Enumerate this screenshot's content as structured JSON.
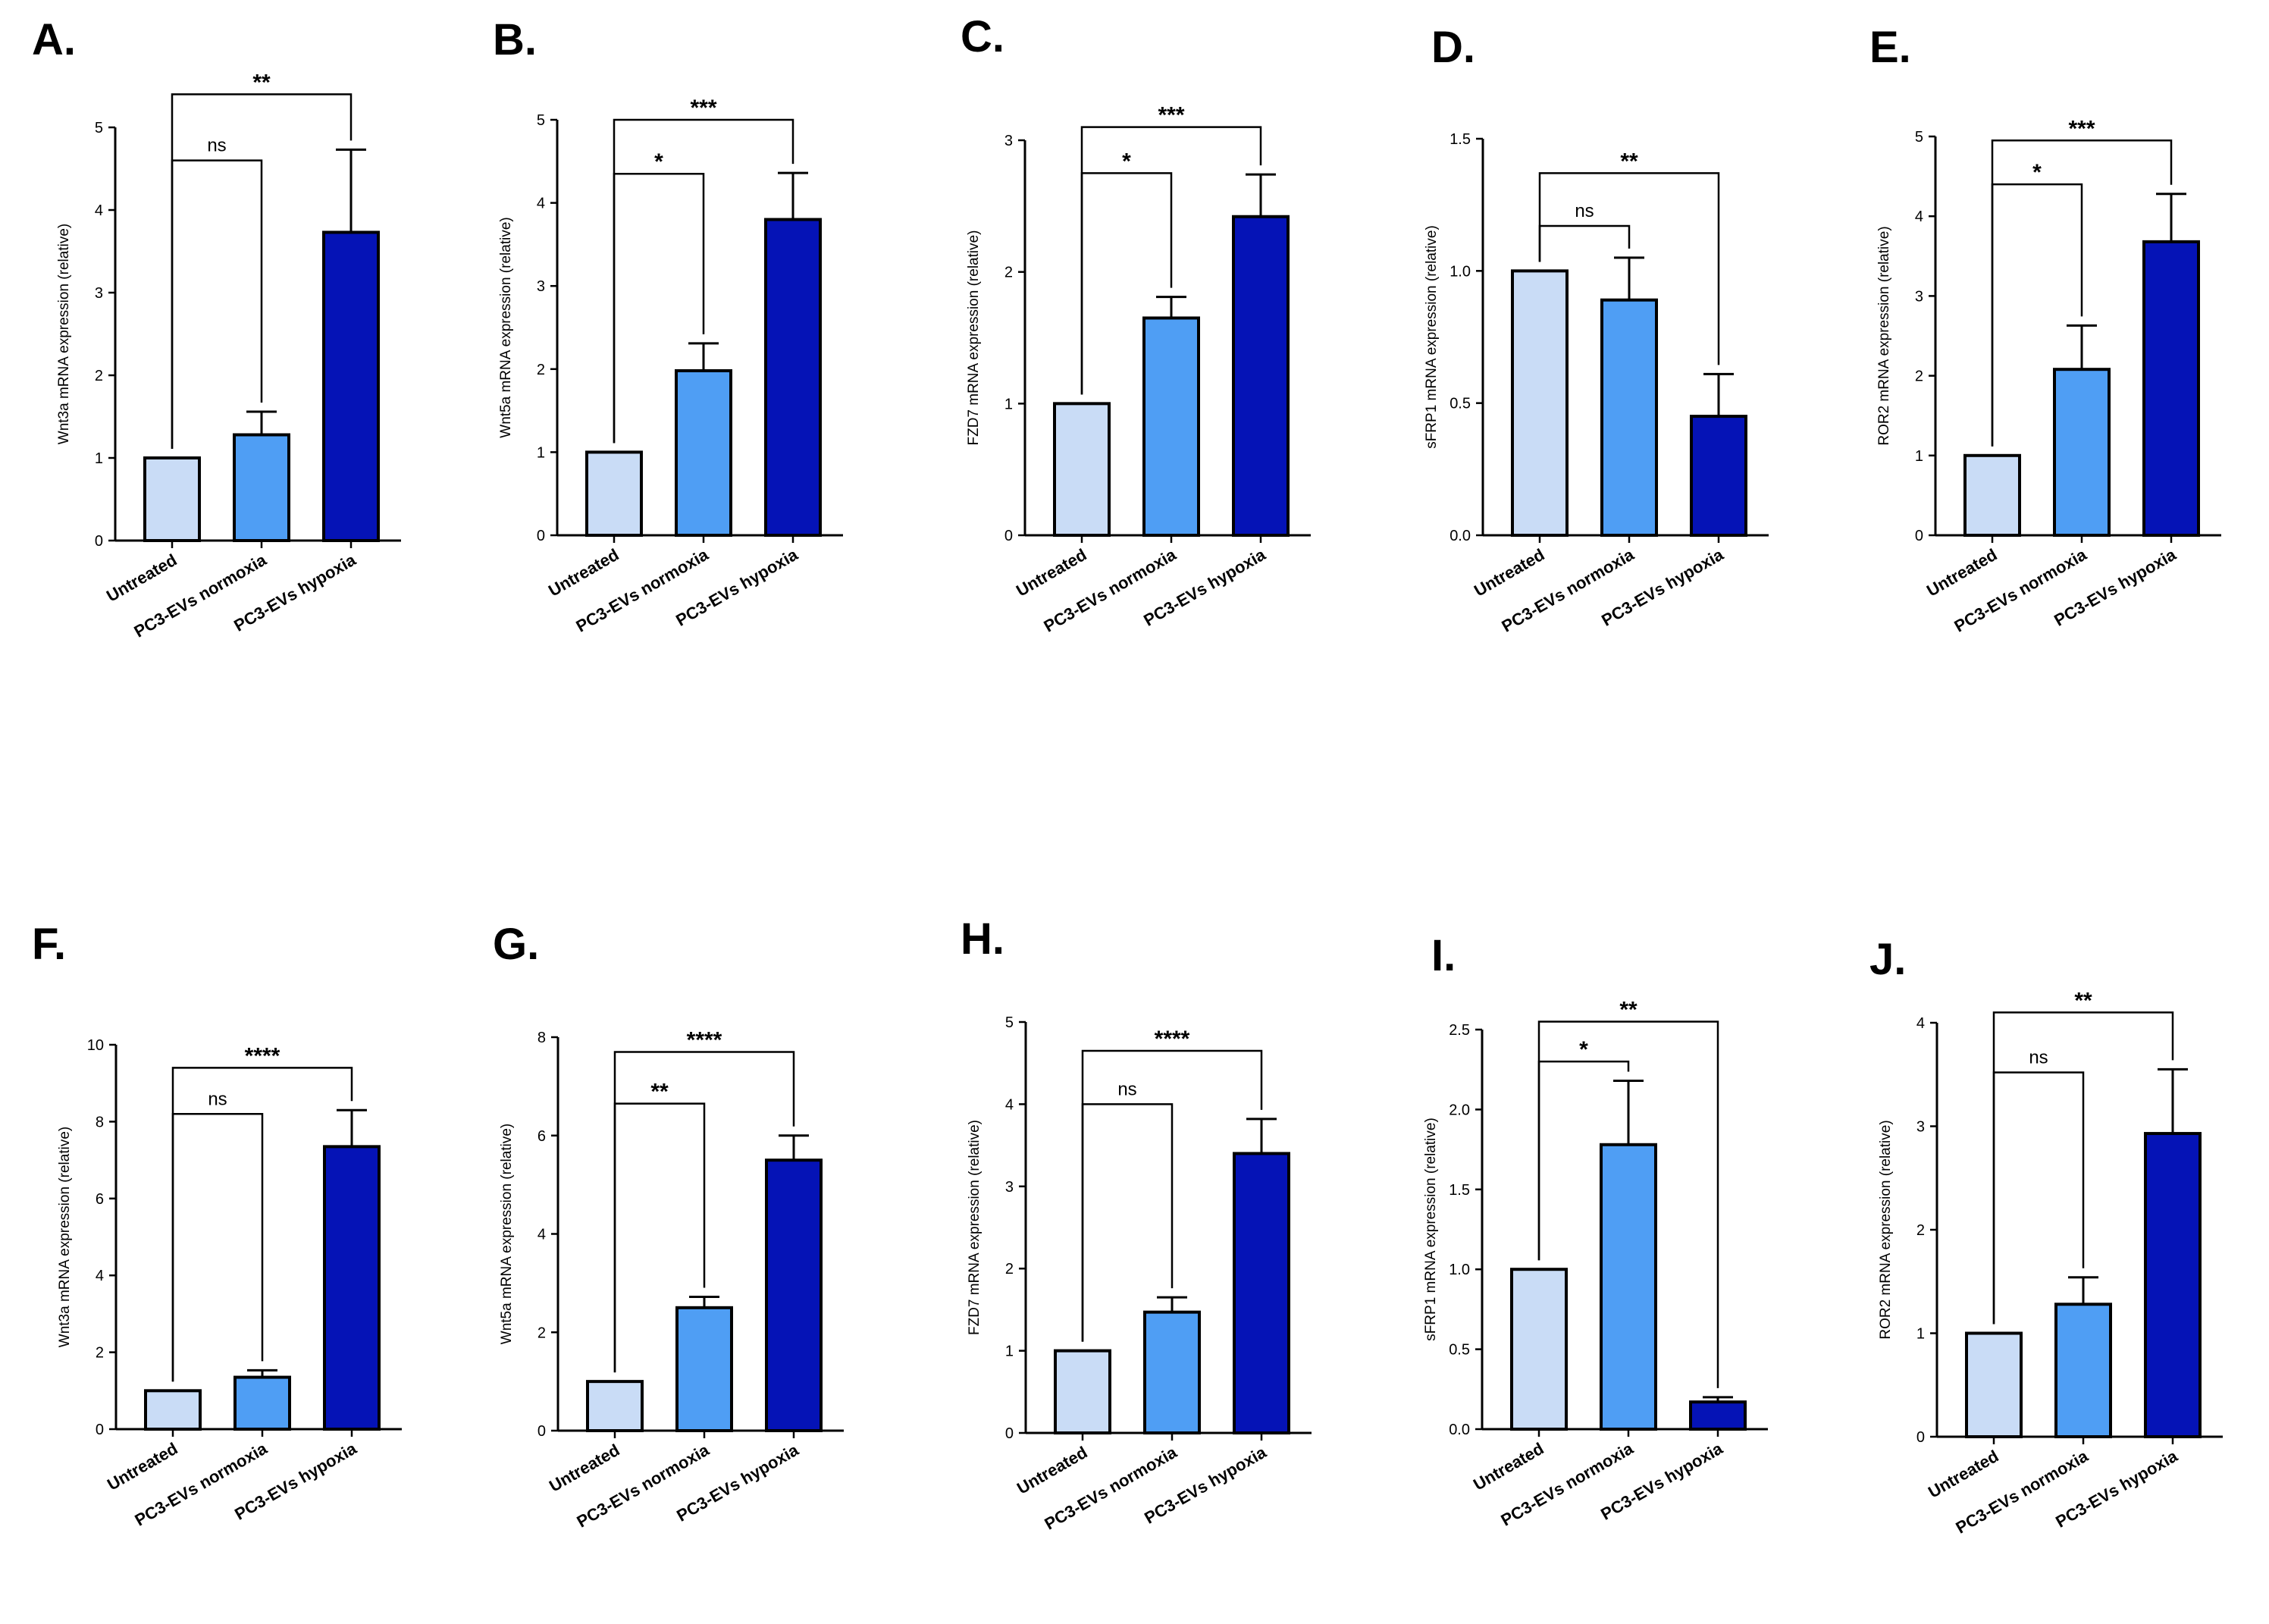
{
  "categories": [
    "Untreated",
    "PC3-EVs normoxia",
    "PC3-EVs hypoxia"
  ],
  "colors": {
    "bar_fills": [
      "#c9dcf6",
      "#4f9ef4",
      "#0513b6"
    ],
    "axis": "#000000"
  },
  "chart_data": [
    {
      "type": "bar",
      "panel": "A.",
      "ylabel": "Wnt3a mRNA expression (relative)",
      "ylim": [
        0,
        5
      ],
      "yticks": [
        "0",
        "1",
        "2",
        "3",
        "4",
        "5"
      ],
      "categories": [
        "Untreated",
        "PC3-EVs normoxia",
        "PC3-EVs hypoxia"
      ],
      "values": [
        1.0,
        1.28,
        3.73
      ],
      "errors": [
        0,
        0.28,
        1.0
      ],
      "significance": [
        {
          "from": 0,
          "to": 1,
          "label": "ns",
          "level": 4.6
        },
        {
          "from": 0,
          "to": 2,
          "label": "**",
          "level": 5.4
        }
      ]
    },
    {
      "type": "bar",
      "panel": "B.",
      "ylabel": "Wnt5a mRNA expression (relative)",
      "ylim": [
        0,
        5
      ],
      "yticks": [
        "0",
        "1",
        "2",
        "3",
        "4",
        "5"
      ],
      "categories": [
        "Untreated",
        "PC3-EVs normoxia",
        "PC3-EVs hypoxia"
      ],
      "values": [
        1.0,
        1.98,
        3.8
      ],
      "errors": [
        0,
        0.33,
        0.56
      ],
      "significance": [
        {
          "from": 0,
          "to": 1,
          "label": "*",
          "level": 4.35
        },
        {
          "from": 0,
          "to": 2,
          "label": "***",
          "level": 5.0
        }
      ]
    },
    {
      "type": "bar",
      "panel": "C.",
      "ylabel": "FZD7 mRNA expression (relative)",
      "ylim": [
        0,
        3
      ],
      "yticks": [
        "0",
        "1",
        "2",
        "3"
      ],
      "categories": [
        "Untreated",
        "PC3-EVs normoxia",
        "PC3-EVs hypoxia"
      ],
      "values": [
        1.0,
        1.65,
        2.42
      ],
      "errors": [
        0,
        0.16,
        0.32
      ],
      "significance": [
        {
          "from": 0,
          "to": 1,
          "label": "*",
          "level": 2.75
        },
        {
          "from": 0,
          "to": 2,
          "label": "***",
          "level": 3.1
        }
      ]
    },
    {
      "type": "bar",
      "panel": "D.",
      "ylabel": "sFRP1 mRNA expression (relative)",
      "ylim": [
        0,
        1.5
      ],
      "yticks": [
        "0.0",
        "0.5",
        "1.0",
        "1.5"
      ],
      "categories": [
        "Untreated",
        "PC3-EVs normoxia",
        "PC3-EVs hypoxia"
      ],
      "values": [
        1.0,
        0.89,
        0.45
      ],
      "errors": [
        0,
        0.16,
        0.16
      ],
      "significance": [
        {
          "from": 0,
          "to": 1,
          "label": "ns",
          "level": 1.17
        },
        {
          "from": 0,
          "to": 2,
          "label": "**",
          "level": 1.37
        }
      ]
    },
    {
      "type": "bar",
      "panel": "E.",
      "ylabel": "ROR2 mRNA expression (relative)",
      "ylim": [
        0,
        5
      ],
      "yticks": [
        "0",
        "1",
        "2",
        "3",
        "4",
        "5"
      ],
      "categories": [
        "Untreated",
        "PC3-EVs normoxia",
        "PC3-EVs hypoxia"
      ],
      "values": [
        1.0,
        2.08,
        3.68
      ],
      "errors": [
        0,
        0.55,
        0.6
      ],
      "significance": [
        {
          "from": 0,
          "to": 1,
          "label": "*",
          "level": 4.4
        },
        {
          "from": 0,
          "to": 2,
          "label": "***",
          "level": 4.95
        }
      ]
    },
    {
      "type": "bar",
      "panel": "F.",
      "ylabel": "Wnt3a mRNA expression (relative)",
      "ylim": [
        0,
        10
      ],
      "yticks": [
        "0",
        "2",
        "4",
        "6",
        "8",
        "10"
      ],
      "categories": [
        "Untreated",
        "PC3-EVs normoxia",
        "PC3-EVs hypoxia"
      ],
      "values": [
        1.0,
        1.35,
        7.35
      ],
      "errors": [
        0,
        0.18,
        0.95
      ],
      "significance": [
        {
          "from": 0,
          "to": 1,
          "label": "ns",
          "level": 8.2
        },
        {
          "from": 0,
          "to": 2,
          "label": "****",
          "level": 9.4
        }
      ]
    },
    {
      "type": "bar",
      "panel": "G.",
      "ylabel": "Wnt5a mRNA expression (relative)",
      "ylim": [
        0,
        8
      ],
      "yticks": [
        "0",
        "2",
        "4",
        "6",
        "8"
      ],
      "categories": [
        "Untreated",
        "PC3-EVs normoxia",
        "PC3-EVs hypoxia"
      ],
      "values": [
        1.0,
        2.5,
        5.5
      ],
      "errors": [
        0,
        0.22,
        0.5
      ],
      "significance": [
        {
          "from": 0,
          "to": 1,
          "label": "**",
          "level": 6.65
        },
        {
          "from": 0,
          "to": 2,
          "label": "****",
          "level": 7.7
        }
      ]
    },
    {
      "type": "bar",
      "panel": "H.",
      "ylabel": "FZD7 mRNA expression (relative)",
      "ylim": [
        0,
        5
      ],
      "yticks": [
        "0",
        "1",
        "2",
        "3",
        "4",
        "5"
      ],
      "categories": [
        "Untreated",
        "PC3-EVs normoxia",
        "PC3-EVs hypoxia"
      ],
      "values": [
        1.0,
        1.47,
        3.4
      ],
      "errors": [
        0,
        0.18,
        0.42
      ],
      "significance": [
        {
          "from": 0,
          "to": 1,
          "label": "ns",
          "level": 4.0
        },
        {
          "from": 0,
          "to": 2,
          "label": "****",
          "level": 4.65
        }
      ]
    },
    {
      "type": "bar",
      "panel": "I.",
      "ylabel": "sFRP1 mRNA expression (relative)",
      "ylim": [
        0,
        2.5
      ],
      "yticks": [
        "0.0",
        "0.5",
        "1.0",
        "1.5",
        "2.0",
        "2.5"
      ],
      "categories": [
        "Untreated",
        "PC3-EVs normoxia",
        "PC3-EVs hypoxia"
      ],
      "values": [
        1.0,
        1.78,
        0.17
      ],
      "errors": [
        0,
        0.4,
        0.03
      ],
      "significance": [
        {
          "from": 0,
          "to": 1,
          "label": "*",
          "level": 2.3
        },
        {
          "from": 0,
          "to": 2,
          "label": "**",
          "level": 2.55
        }
      ]
    },
    {
      "type": "bar",
      "panel": "J.",
      "ylabel": "ROR2 mRNA expression (relative)",
      "ylim": [
        0,
        4
      ],
      "yticks": [
        "0",
        "1",
        "2",
        "3",
        "4"
      ],
      "categories": [
        "Untreated",
        "PC3-EVs normoxia",
        "PC3-EVs hypoxia"
      ],
      "values": [
        1.0,
        1.28,
        2.93
      ],
      "errors": [
        0,
        0.26,
        0.62
      ],
      "significance": [
        {
          "from": 0,
          "to": 1,
          "label": "ns",
          "level": 3.52
        },
        {
          "from": 0,
          "to": 2,
          "label": "**",
          "level": 4.1
        }
      ]
    }
  ]
}
